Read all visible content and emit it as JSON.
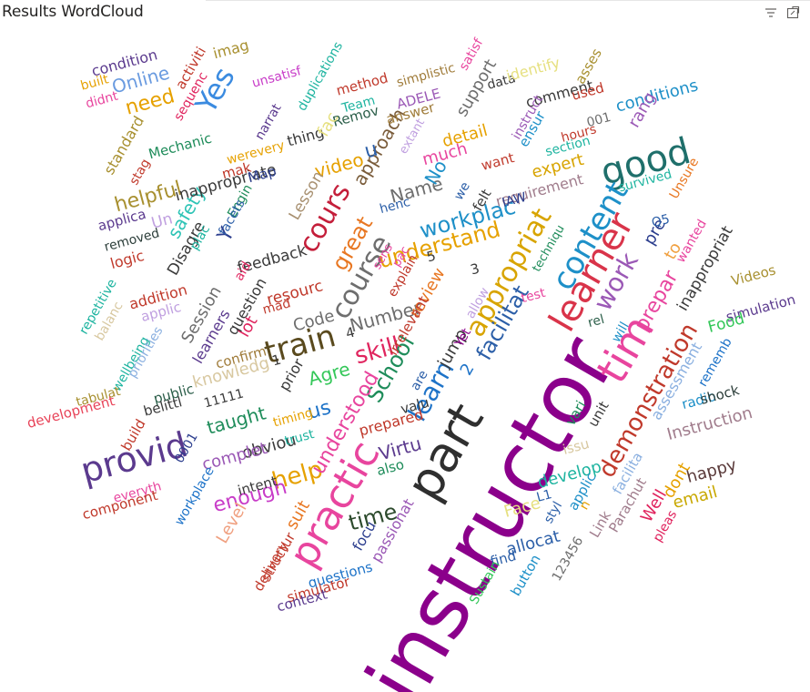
{
  "title": "Results WordCloud",
  "icons": {
    "filter": "filter-icon",
    "focus_mode": "focus-mode-icon"
  },
  "chart_data": {
    "type": "wordcloud",
    "title": "Results WordCloud",
    "words": [
      {
        "text": "instructor",
        "size": 92,
        "color": "#8B008B"
      },
      {
        "text": "part",
        "size": 54,
        "color": "#2F2F2F"
      },
      {
        "text": "practic",
        "size": 44,
        "color": "#E8459E"
      },
      {
        "text": "tim",
        "size": 46,
        "color": "#E8459E"
      },
      {
        "text": "learner",
        "size": 40,
        "color": "#D9344A"
      },
      {
        "text": "good",
        "size": 40,
        "color": "#1F6F6B"
      },
      {
        "text": "provid",
        "size": 38,
        "color": "#5B3A8E"
      },
      {
        "text": "content",
        "size": 34,
        "color": "#1E90C8"
      },
      {
        "text": "train",
        "size": 34,
        "color": "#5A4A1E"
      },
      {
        "text": "appropriat",
        "size": 30,
        "color": "#D8A400"
      },
      {
        "text": "course",
        "size": 30,
        "color": "#6E6E6E"
      },
      {
        "text": "cours",
        "size": 30,
        "color": "#C41E3A"
      },
      {
        "text": "learn",
        "size": 28,
        "color": "#1E73C8"
      },
      {
        "text": "Yes",
        "size": 32,
        "color": "#3B8BE0"
      },
      {
        "text": "work",
        "size": 28,
        "color": "#9B59B6"
      },
      {
        "text": "demonstration",
        "size": 26,
        "color": "#C0392B"
      },
      {
        "text": "help",
        "size": 26,
        "color": "#E6A100"
      },
      {
        "text": "skill",
        "size": 26,
        "color": "#E0245E"
      },
      {
        "text": "understand",
        "size": 24,
        "color": "#E6A100"
      },
      {
        "text": "workplac",
        "size": 24,
        "color": "#1E90C8"
      },
      {
        "text": "great",
        "size": 24,
        "color": "#E87722"
      },
      {
        "text": "facilitat",
        "size": 24,
        "color": "#2C5FA8"
      },
      {
        "text": "School",
        "size": 24,
        "color": "#1E8C5A"
      },
      {
        "text": "time",
        "size": 24,
        "color": "#2C4A2C"
      },
      {
        "text": "enough",
        "size": 22,
        "color": "#C83CC8"
      },
      {
        "text": "understood",
        "size": 22,
        "color": "#E8459E"
      },
      {
        "text": "prepar",
        "size": 22,
        "color": "#E8459E"
      },
      {
        "text": "helpful",
        "size": 22,
        "color": "#A89030"
      },
      {
        "text": "approach",
        "size": 20,
        "color": "#7A5C3A"
      },
      {
        "text": "Name",
        "size": 20,
        "color": "#6E6E6E"
      },
      {
        "text": "Number",
        "size": 20,
        "color": "#6E6E6E"
      },
      {
        "text": "Virtu",
        "size": 20,
        "color": "#5B3A8E"
      },
      {
        "text": "Online",
        "size": 20,
        "color": "#6A9BE0"
      },
      {
        "text": "need",
        "size": 22,
        "color": "#E6A100"
      },
      {
        "text": "No",
        "size": 20,
        "color": "#1E90C8"
      },
      {
        "text": "u",
        "size": 22,
        "color": "#2C5FA8"
      },
      {
        "text": "Y",
        "size": 22,
        "color": "#2C3E8E"
      },
      {
        "text": "us",
        "size": 22,
        "color": "#1E73C8"
      },
      {
        "text": "safety",
        "size": 20,
        "color": "#2EC4B6"
      },
      {
        "text": "video",
        "size": 20,
        "color": "#E6A100"
      },
      {
        "text": "taught",
        "size": 20,
        "color": "#1E8C5A"
      },
      {
        "text": "Agre",
        "size": 20,
        "color": "#34C759"
      },
      {
        "text": "Code",
        "size": 18,
        "color": "#6E6E6E"
      },
      {
        "text": "Session",
        "size": 18,
        "color": "#6E6E6E"
      },
      {
        "text": "knowledg",
        "size": 18,
        "color": "#D8C8A0"
      },
      {
        "text": "review",
        "size": 18,
        "color": "#E87722"
      },
      {
        "text": "jump",
        "size": 18,
        "color": "#3A3A3A"
      },
      {
        "text": "much",
        "size": 18,
        "color": "#E8459E"
      },
      {
        "text": "detail",
        "size": 18,
        "color": "#E6A100"
      },
      {
        "text": "expert",
        "size": 18,
        "color": "#D8A400"
      },
      {
        "text": "support",
        "size": 18,
        "color": "#6E6E6E"
      },
      {
        "text": "conditions",
        "size": 18,
        "color": "#1E90C8"
      },
      {
        "text": "Instruction",
        "size": 18,
        "color": "#A07C8C"
      },
      {
        "text": "email",
        "size": 18,
        "color": "#C8A800"
      },
      {
        "text": "happy",
        "size": 18,
        "color": "#5A3A3A"
      },
      {
        "text": "Well",
        "size": 18,
        "color": "#E0245E"
      },
      {
        "text": "dont",
        "size": 18,
        "color": "#E6A100"
      },
      {
        "text": "Face",
        "size": 18,
        "color": "#E6E080"
      },
      {
        "text": "develop",
        "size": 18,
        "color": "#1EB4A0"
      },
      {
        "text": "allocat",
        "size": 18,
        "color": "#2C5FA8"
      },
      {
        "text": "obviou",
        "size": 18,
        "color": "#3A3A3A"
      },
      {
        "text": "complet",
        "size": 18,
        "color": "#9B59B6"
      },
      {
        "text": "Level",
        "size": 18,
        "color": "#F0A080"
      },
      {
        "text": "suit",
        "size": 18,
        "color": "#E87722"
      },
      {
        "text": "lot",
        "size": 18,
        "color": "#E0245E"
      },
      {
        "text": "question",
        "size": 16,
        "color": "#3A3A3A"
      },
      {
        "text": "feedback",
        "size": 17,
        "color": "#3A3A3A"
      },
      {
        "text": "inappropriate",
        "size": 17,
        "color": "#3A3A3A"
      },
      {
        "text": "inappropriat",
        "size": 17,
        "color": "#3A3A3A"
      },
      {
        "text": "requirement",
        "size": 16,
        "color": "#A07C8C"
      },
      {
        "text": "assessment",
        "size": 16,
        "color": "#8BB0E0"
      },
      {
        "text": "Lesson",
        "size": 17,
        "color": "#A89070"
      },
      {
        "text": "resourc",
        "size": 17,
        "color": "#C0392B"
      },
      {
        "text": "Disagre",
        "size": 17,
        "color": "#3A3A3A"
      },
      {
        "text": "comment",
        "size": 16,
        "color": "#3A3A3A"
      },
      {
        "text": "method",
        "size": 15,
        "color": "#C0392B"
      },
      {
        "text": "answer",
        "size": 15,
        "color": "#A07C3A"
      },
      {
        "text": "ADELE",
        "size": 15,
        "color": "#9B59B6"
      },
      {
        "text": "Remov",
        "size": 15,
        "color": "#2C5F4A"
      },
      {
        "text": "thing",
        "size": 16,
        "color": "#3A3A3A"
      },
      {
        "text": "fac",
        "size": 18,
        "color": "#E6E080"
      },
      {
        "text": "Team",
        "size": 14,
        "color": "#1EB4A0"
      },
      {
        "text": "standard",
        "size": 16,
        "color": "#A89030"
      },
      {
        "text": "Mechanic",
        "size": 15,
        "color": "#1E8C5A"
      },
      {
        "text": "werevery",
        "size": 14,
        "color": "#E6A100"
      },
      {
        "text": "mak",
        "size": 15,
        "color": "#C0392B"
      },
      {
        "text": "Map",
        "size": 15,
        "color": "#2C3E8E"
      },
      {
        "text": "Engin",
        "size": 14,
        "color": "#1E8C5A"
      },
      {
        "text": "condition",
        "size": 16,
        "color": "#5B3A8E"
      },
      {
        "text": "imag",
        "size": 16,
        "color": "#A89030"
      },
      {
        "text": "activiti",
        "size": 15,
        "color": "#C0392B"
      },
      {
        "text": "unsatisf",
        "size": 14,
        "color": "#C83CC8"
      },
      {
        "text": "duplications",
        "size": 14,
        "color": "#1EB4A0"
      },
      {
        "text": "narrat",
        "size": 14,
        "color": "#5B3A8E"
      },
      {
        "text": "simplistic",
        "size": 14,
        "color": "#A07C3A"
      },
      {
        "text": "satisf",
        "size": 14,
        "color": "#E8459E"
      },
      {
        "text": "data",
        "size": 14,
        "color": "#3A3A3A"
      },
      {
        "text": "identify",
        "size": 16,
        "color": "#E6E080"
      },
      {
        "text": "asses",
        "size": 15,
        "color": "#A89030"
      },
      {
        "text": "used",
        "size": 15,
        "color": "#C0392B"
      },
      {
        "text": "rang",
        "size": 18,
        "color": "#9B59B6"
      },
      {
        "text": "ensur",
        "size": 15,
        "color": "#1E90C8"
      },
      {
        "text": "section",
        "size": 14,
        "color": "#1EB4A0"
      },
      {
        "text": "hours",
        "size": 14,
        "color": "#C0392B"
      },
      {
        "text": "instruct",
        "size": 14,
        "color": "#9B59B6"
      },
      {
        "text": "001",
        "size": 14,
        "color": "#6E6E6E"
      },
      {
        "text": "survived",
        "size": 14,
        "color": "#1EB4A0"
      },
      {
        "text": "Unsure",
        "size": 14,
        "color": "#E87722"
      },
      {
        "text": "want",
        "size": 15,
        "color": "#C0392B"
      },
      {
        "text": "felt",
        "size": 15,
        "color": "#3A3A3A"
      },
      {
        "text": "IAW",
        "size": 14,
        "color": "#2C3E8E"
      },
      {
        "text": "we",
        "size": 14,
        "color": "#2C5FA8"
      },
      {
        "text": "built",
        "size": 14,
        "color": "#E6A100"
      },
      {
        "text": "didnt",
        "size": 14,
        "color": "#E8459E"
      },
      {
        "text": "sequenc",
        "size": 14,
        "color": "#E0245E"
      },
      {
        "text": "stag",
        "size": 14,
        "color": "#C0392B"
      },
      {
        "text": "Un",
        "size": 17,
        "color": "#C0A0E0"
      },
      {
        "text": "applica",
        "size": 15,
        "color": "#5B3A8E"
      },
      {
        "text": "removed",
        "size": 14,
        "color": "#2C3E3A"
      },
      {
        "text": "logic",
        "size": 16,
        "color": "#C0392B"
      },
      {
        "text": "addition",
        "size": 16,
        "color": "#C0392B"
      },
      {
        "text": "applic",
        "size": 15,
        "color": "#C0A0E0"
      },
      {
        "text": "repetitive",
        "size": 14,
        "color": "#1EB4A0"
      },
      {
        "text": "balanc",
        "size": 14,
        "color": "#D8C8A0"
      },
      {
        "text": "wellbeing",
        "size": 14,
        "color": "#1EB4A0"
      },
      {
        "text": "priorities",
        "size": 14,
        "color": "#8BB0E0"
      },
      {
        "text": "learners",
        "size": 16,
        "color": "#5B3A8E"
      },
      {
        "text": "plac",
        "size": 14,
        "color": "#1EB4A0"
      },
      {
        "text": "facets",
        "size": 14,
        "color": "#2C5FA8"
      },
      {
        "text": "aid",
        "size": 14,
        "color": "#E0245E"
      },
      {
        "text": "mad",
        "size": 14,
        "color": "#C0392B"
      },
      {
        "text": "confirm",
        "size": 15,
        "color": "#A07C3A"
      },
      {
        "text": "prior",
        "size": 16,
        "color": "#3A3A3A"
      },
      {
        "text": "1",
        "size": 15,
        "color": "#3A3A3A"
      },
      {
        "text": "4",
        "size": 15,
        "color": "#3A3A3A"
      },
      {
        "text": "2",
        "size": 18,
        "color": "#1E73C8"
      },
      {
        "text": "3",
        "size": 15,
        "color": "#3A3A3A"
      },
      {
        "text": "5",
        "size": 15,
        "color": "#3A3A3A"
      },
      {
        "text": "tabulat",
        "size": 14,
        "color": "#A89030"
      },
      {
        "text": "public",
        "size": 15,
        "color": "#2C5F4A"
      },
      {
        "text": "11111",
        "size": 14,
        "color": "#3A3A3A"
      },
      {
        "text": "belittl",
        "size": 15,
        "color": "#3A3A3A"
      },
      {
        "text": "timing",
        "size": 14,
        "color": "#E6A100"
      },
      {
        "text": "trust",
        "size": 14,
        "color": "#1EB4A0"
      },
      {
        "text": "development",
        "size": 15,
        "color": "#E8455A"
      },
      {
        "text": "build",
        "size": 15,
        "color": "#C0392B"
      },
      {
        "text": "0001",
        "size": 14,
        "color": "#2C3E8E"
      },
      {
        "text": "prepared",
        "size": 16,
        "color": "#C0392B"
      },
      {
        "text": "valu",
        "size": 15,
        "color": "#3A3A3A"
      },
      {
        "text": "are",
        "size": 14,
        "color": "#2C5FA8"
      },
      {
        "text": "also",
        "size": 15,
        "color": "#1E8C5A"
      },
      {
        "text": "irrelevant",
        "size": 15,
        "color": "#C0392B"
      },
      {
        "text": "Yet",
        "size": 14,
        "color": "#8B008B"
      },
      {
        "text": "allow",
        "size": 14,
        "color": "#C0A0E0"
      },
      {
        "text": "explain",
        "size": 14,
        "color": "#C0392B"
      },
      {
        "text": "sens",
        "size": 13,
        "color": "#E8459E"
      },
      {
        "text": "pac",
        "size": 13,
        "color": "#E8459E"
      },
      {
        "text": "henc",
        "size": 14,
        "color": "#2C5FA8"
      },
      {
        "text": "techniqu",
        "size": 13,
        "color": "#1E8C5A"
      },
      {
        "text": "test",
        "size": 14,
        "color": "#E8459E"
      },
      {
        "text": "rel",
        "size": 14,
        "color": "#2C5F4A"
      },
      {
        "text": "will",
        "size": 14,
        "color": "#1E90C8"
      },
      {
        "text": "pre",
        "size": 18,
        "color": "#2C3E8E"
      },
      {
        "text": "to",
        "size": 18,
        "color": "#F0A040"
      },
      {
        "text": "Q5",
        "size": 14,
        "color": "#2C5FA8"
      },
      {
        "text": "wanted",
        "size": 14,
        "color": "#E8459E"
      },
      {
        "text": "Videos",
        "size": 15,
        "color": "#A89030"
      },
      {
        "text": "simulation",
        "size": 15,
        "color": "#5B3A8E"
      },
      {
        "text": "Food",
        "size": 17,
        "color": "#34C759"
      },
      {
        "text": "rememb",
        "size": 14,
        "color": "#1E73C8"
      },
      {
        "text": "radio",
        "size": 15,
        "color": "#1E90C8"
      },
      {
        "text": "shock",
        "size": 15,
        "color": "#2C3E3A"
      },
      {
        "text": "vari",
        "size": 15,
        "color": "#1E8C5A"
      },
      {
        "text": "unit",
        "size": 15,
        "color": "#3A3A3A"
      },
      {
        "text": "issu",
        "size": 15,
        "color": "#D8C8A0"
      },
      {
        "text": "applic",
        "size": 15,
        "color": "#1E90C8"
      },
      {
        "text": "n",
        "size": 14,
        "color": "#E6A100"
      },
      {
        "text": "facilita",
        "size": 15,
        "color": "#8BB0E0"
      },
      {
        "text": "Link",
        "size": 15,
        "color": "#A07C8C"
      },
      {
        "text": "Parachut",
        "size": 15,
        "color": "#A07C8C"
      },
      {
        "text": "pleas",
        "size": 14,
        "color": "#E0245E"
      },
      {
        "text": "L1",
        "size": 14,
        "color": "#2C5FA8"
      },
      {
        "text": "styl",
        "size": 14,
        "color": "#2C5FA8"
      },
      {
        "text": "123456",
        "size": 14,
        "color": "#6E6E6E"
      },
      {
        "text": "find",
        "size": 15,
        "color": "#2C5FA8"
      },
      {
        "text": "button",
        "size": 15,
        "color": "#1E90C8"
      },
      {
        "text": "Sustain",
        "size": 14,
        "color": "#34C759"
      },
      {
        "text": "focu",
        "size": 16,
        "color": "#2C3E8E"
      },
      {
        "text": "passionat",
        "size": 16,
        "color": "#9B59B6"
      },
      {
        "text": "questions",
        "size": 15,
        "color": "#1E73C8"
      },
      {
        "text": "simulator",
        "size": 15,
        "color": "#C0392B"
      },
      {
        "text": "context",
        "size": 15,
        "color": "#5B3A8E"
      },
      {
        "text": "structur",
        "size": 15,
        "color": "#C0392B"
      },
      {
        "text": "delivery",
        "size": 15,
        "color": "#C0392B"
      },
      {
        "text": "intent",
        "size": 15,
        "color": "#3A3A3A"
      },
      {
        "text": "everyth",
        "size": 14,
        "color": "#E8459E"
      },
      {
        "text": "component",
        "size": 15,
        "color": "#C0392B"
      },
      {
        "text": "workplace",
        "size": 14,
        "color": "#1E73C8"
      },
      {
        "text": "extant",
        "size": 13,
        "color": "#C0A0E0"
      }
    ]
  }
}
